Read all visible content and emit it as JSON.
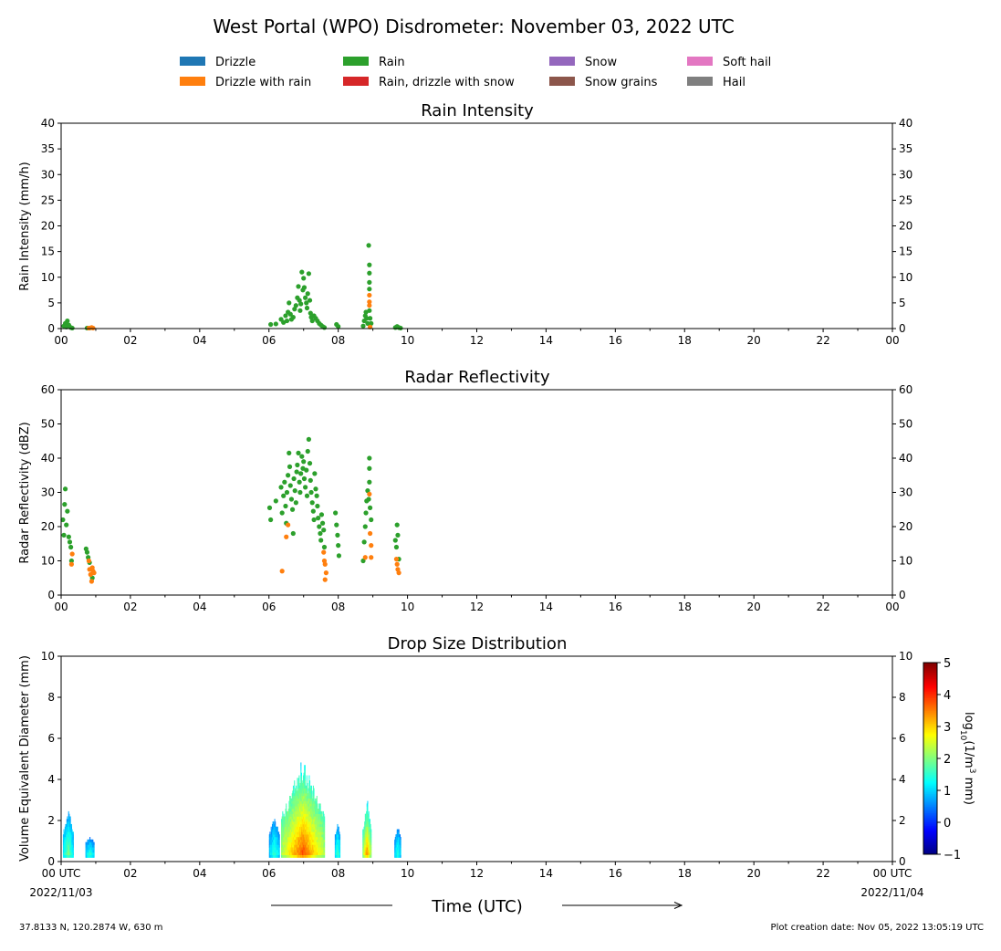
{
  "figure": {
    "title": "West Portal (WPO) Disdrometer: November 03, 2022 UTC",
    "xlabel": "Time (UTC)",
    "date_start": "2022/11/03",
    "date_end": "2022/11/04",
    "location": "37.8133 N, 120.2874 W, 630 m",
    "creation_date": "Plot creation date: Nov 05, 2022 13:05:19 UTC"
  },
  "legend": [
    {
      "label": "Drizzle",
      "color": "#1f77b4"
    },
    {
      "label": "Drizzle with rain",
      "color": "#ff7f0e"
    },
    {
      "label": "Rain",
      "color": "#2ca02c"
    },
    {
      "label": "Rain, drizzle with snow",
      "color": "#d62728"
    },
    {
      "label": "Snow",
      "color": "#9467bd"
    },
    {
      "label": "Snow grains",
      "color": "#8c564b"
    },
    {
      "label": "Soft hail",
      "color": "#e377c2"
    },
    {
      "label": "Hail",
      "color": "#7f7f7f"
    }
  ],
  "chart_data": [
    {
      "type": "scatter",
      "title": "Rain Intensity",
      "ylabel": "Rain Intensity (mm/h)",
      "xlim": [
        0,
        24
      ],
      "ylim": [
        0,
        40
      ],
      "x_tick_labels": [
        "00",
        "02",
        "04",
        "06",
        "08",
        "10",
        "12",
        "14",
        "16",
        "18",
        "20",
        "22",
        "00"
      ],
      "y_ticks": [
        0,
        5,
        10,
        15,
        20,
        25,
        30,
        35,
        40
      ],
      "series": [
        {
          "name": "Rain",
          "color": "#2ca02c",
          "points": [
            [
              0.08,
              0.5
            ],
            [
              0.12,
              1.0
            ],
            [
              0.15,
              0.3
            ],
            [
              0.18,
              1.5
            ],
            [
              0.22,
              0.7
            ],
            [
              0.28,
              0.2
            ],
            [
              0.32,
              0.1
            ],
            [
              0.75,
              0.1
            ],
            [
              0.82,
              0.1
            ],
            [
              6.05,
              0.8
            ],
            [
              6.2,
              0.9
            ],
            [
              6.35,
              1.8
            ],
            [
              6.42,
              1.2
            ],
            [
              6.48,
              2.5
            ],
            [
              6.52,
              1.5
            ],
            [
              6.55,
              3.2
            ],
            [
              6.58,
              5.0
            ],
            [
              6.62,
              2.8
            ],
            [
              6.65,
              1.8
            ],
            [
              6.7,
              2.2
            ],
            [
              6.74,
              3.8
            ],
            [
              6.78,
              4.5
            ],
            [
              6.82,
              6.0
            ],
            [
              6.85,
              8.2
            ],
            [
              6.88,
              5.5
            ],
            [
              6.9,
              3.5
            ],
            [
              6.92,
              4.8
            ],
            [
              6.95,
              11.0
            ],
            [
              6.98,
              7.5
            ],
            [
              7.0,
              9.8
            ],
            [
              7.02,
              8.0
            ],
            [
              7.05,
              6.0
            ],
            [
              7.08,
              5.0
            ],
            [
              7.1,
              4.0
            ],
            [
              7.12,
              6.8
            ],
            [
              7.15,
              10.7
            ],
            [
              7.18,
              5.5
            ],
            [
              7.2,
              3.0
            ],
            [
              7.22,
              2.2
            ],
            [
              7.25,
              1.5
            ],
            [
              7.3,
              2.5
            ],
            [
              7.35,
              2.0
            ],
            [
              7.4,
              1.5
            ],
            [
              7.45,
              1.0
            ],
            [
              7.5,
              0.7
            ],
            [
              7.55,
              0.4
            ],
            [
              7.6,
              0.2
            ],
            [
              7.95,
              0.8
            ],
            [
              8.0,
              0.4
            ],
            [
              8.72,
              0.5
            ],
            [
              8.75,
              1.5
            ],
            [
              8.78,
              2.5
            ],
            [
              8.8,
              3.2
            ],
            [
              8.82,
              2.0
            ],
            [
              8.85,
              1.0
            ],
            [
              8.88,
              16.2
            ],
            [
              8.9,
              12.4
            ],
            [
              8.9,
              10.8
            ],
            [
              8.9,
              9.0
            ],
            [
              8.9,
              7.7
            ],
            [
              8.9,
              3.5
            ],
            [
              8.92,
              2.0
            ],
            [
              8.95,
              1.0
            ],
            [
              9.65,
              0.2
            ],
            [
              9.7,
              0.4
            ],
            [
              9.75,
              0.2
            ],
            [
              9.8,
              0.1
            ]
          ]
        },
        {
          "name": "Drizzle with rain",
          "color": "#ff7f0e",
          "points": [
            [
              0.8,
              0.1
            ],
            [
              0.88,
              0.2
            ],
            [
              0.92,
              0.1
            ],
            [
              8.9,
              6.5
            ],
            [
              8.9,
              5.2
            ],
            [
              8.9,
              4.5
            ],
            [
              8.92,
              0.3
            ]
          ]
        }
      ]
    },
    {
      "type": "scatter",
      "title": "Radar Reflectivity",
      "ylabel": "Radar Reflectivity (dBZ)",
      "xlim": [
        0,
        24
      ],
      "ylim": [
        0,
        60
      ],
      "x_tick_labels": [
        "00",
        "02",
        "04",
        "06",
        "08",
        "10",
        "12",
        "14",
        "16",
        "18",
        "20",
        "22",
        "00"
      ],
      "y_ticks": [
        0,
        10,
        20,
        30,
        40,
        50,
        60
      ],
      "series": [
        {
          "name": "Rain",
          "color": "#2ca02c",
          "points": [
            [
              0.05,
              22.0
            ],
            [
              0.08,
              17.5
            ],
            [
              0.1,
              26.5
            ],
            [
              0.12,
              31.0
            ],
            [
              0.15,
              20.5
            ],
            [
              0.18,
              24.5
            ],
            [
              0.22,
              17.0
            ],
            [
              0.25,
              15.5
            ],
            [
              0.28,
              14.0
            ],
            [
              0.3,
              10.0
            ],
            [
              0.72,
              13.5
            ],
            [
              0.75,
              12.5
            ],
            [
              0.78,
              11.0
            ],
            [
              0.82,
              9.5
            ],
            [
              0.9,
              5.0
            ],
            [
              6.02,
              25.5
            ],
            [
              6.05,
              22.0
            ],
            [
              6.2,
              27.5
            ],
            [
              6.35,
              31.5
            ],
            [
              6.38,
              24.0
            ],
            [
              6.42,
              29.0
            ],
            [
              6.45,
              33.0
            ],
            [
              6.48,
              26.0
            ],
            [
              6.5,
              21.0
            ],
            [
              6.52,
              30.0
            ],
            [
              6.55,
              35.0
            ],
            [
              6.58,
              41.5
            ],
            [
              6.6,
              37.5
            ],
            [
              6.62,
              32.0
            ],
            [
              6.65,
              28.0
            ],
            [
              6.68,
              25.0
            ],
            [
              6.7,
              18.0
            ],
            [
              6.72,
              34.0
            ],
            [
              6.75,
              30.5
            ],
            [
              6.78,
              27.0
            ],
            [
              6.8,
              36.0
            ],
            [
              6.82,
              38.0
            ],
            [
              6.85,
              41.5
            ],
            [
              6.88,
              33.0
            ],
            [
              6.9,
              30.0
            ],
            [
              6.92,
              35.5
            ],
            [
              6.95,
              40.5
            ],
            [
              6.98,
              37.0
            ],
            [
              7.0,
              39.0
            ],
            [
              7.02,
              34.0
            ],
            [
              7.05,
              31.5
            ],
            [
              7.08,
              36.5
            ],
            [
              7.1,
              29.0
            ],
            [
              7.12,
              42.0
            ],
            [
              7.15,
              45.5
            ],
            [
              7.18,
              38.5
            ],
            [
              7.2,
              33.5
            ],
            [
              7.22,
              30.0
            ],
            [
              7.25,
              27.0
            ],
            [
              7.28,
              24.5
            ],
            [
              7.3,
              22.0
            ],
            [
              7.32,
              35.5
            ],
            [
              7.35,
              31.0
            ],
            [
              7.38,
              29.0
            ],
            [
              7.4,
              26.0
            ],
            [
              7.42,
              22.5
            ],
            [
              7.45,
              20.0
            ],
            [
              7.48,
              18.0
            ],
            [
              7.5,
              16.0
            ],
            [
              7.52,
              23.5
            ],
            [
              7.55,
              21.0
            ],
            [
              7.58,
              19.0
            ],
            [
              7.6,
              14.0
            ],
            [
              7.92,
              24.0
            ],
            [
              7.95,
              20.5
            ],
            [
              7.98,
              17.5
            ],
            [
              8.0,
              14.5
            ],
            [
              8.02,
              11.5
            ],
            [
              8.72,
              10.0
            ],
            [
              8.75,
              15.5
            ],
            [
              8.78,
              20.0
            ],
            [
              8.8,
              24.0
            ],
            [
              8.82,
              27.5
            ],
            [
              8.85,
              30.5
            ],
            [
              8.88,
              28.0
            ],
            [
              8.9,
              40.0
            ],
            [
              8.9,
              37.0
            ],
            [
              8.9,
              33.0
            ],
            [
              8.92,
              25.5
            ],
            [
              8.95,
              22.0
            ],
            [
              9.65,
              16.0
            ],
            [
              9.68,
              14.0
            ],
            [
              9.7,
              20.5
            ],
            [
              9.72,
              17.5
            ],
            [
              9.75,
              10.5
            ]
          ]
        },
        {
          "name": "Drizzle with rain",
          "color": "#ff7f0e",
          "points": [
            [
              0.3,
              9.0
            ],
            [
              0.32,
              12.0
            ],
            [
              0.8,
              10.0
            ],
            [
              0.82,
              7.5
            ],
            [
              0.85,
              6.0
            ],
            [
              0.88,
              4.0
            ],
            [
              0.9,
              8.0
            ],
            [
              0.92,
              7.0
            ],
            [
              0.95,
              6.5
            ],
            [
              6.38,
              7.0
            ],
            [
              6.5,
              17.0
            ],
            [
              6.55,
              20.5
            ],
            [
              7.58,
              12.5
            ],
            [
              7.6,
              10.0
            ],
            [
              7.62,
              9.0
            ],
            [
              7.65,
              6.5
            ],
            [
              7.62,
              4.5
            ],
            [
              8.78,
              11.0
            ],
            [
              8.9,
              29.5
            ],
            [
              8.92,
              18.0
            ],
            [
              8.95,
              14.5
            ],
            [
              8.95,
              11.0
            ],
            [
              9.68,
              10.5
            ],
            [
              9.7,
              9.0
            ],
            [
              9.72,
              7.5
            ],
            [
              9.75,
              6.5
            ]
          ]
        }
      ]
    },
    {
      "type": "heatmap",
      "title": "Drop Size Distribution",
      "ylabel": "Volume Equivalent Diameter (mm)",
      "xlim": [
        0,
        24
      ],
      "ylim": [
        0,
        10
      ],
      "x_tick_labels": [
        "00 UTC",
        "02",
        "04",
        "06",
        "08",
        "10",
        "12",
        "14",
        "16",
        "18",
        "20",
        "22",
        "00 UTC"
      ],
      "y_ticks": [
        0,
        2,
        4,
        6,
        8,
        10
      ],
      "colorbar": {
        "label": "log10(1/m3 mm)",
        "label_base": "log",
        "label_sub": "10",
        "label_unit": "(1/m",
        "label_sup": "3",
        "label_tail": " mm)",
        "range": [
          -1,
          5
        ],
        "ticks": [
          -1,
          0,
          1,
          2,
          3,
          4,
          5
        ],
        "tick_labels": [
          "−1",
          "0",
          "1",
          "2",
          "3",
          "4",
          "5"
        ]
      },
      "periods": [
        {
          "start": 0.05,
          "end": 0.35,
          "max_d": 2.5,
          "peak": 2.2
        },
        {
          "start": 0.7,
          "end": 0.95,
          "max_d": 1.1,
          "peak": 2.0
        },
        {
          "start": 6.0,
          "end": 6.3,
          "max_d": 2.2,
          "peak": 1.8
        },
        {
          "start": 6.35,
          "end": 7.6,
          "max_d": 5.0,
          "peak": 4.0
        },
        {
          "start": 7.9,
          "end": 8.05,
          "max_d": 2.0,
          "peak": 2.0
        },
        {
          "start": 8.7,
          "end": 8.95,
          "max_d": 3.0,
          "peak": 3.8
        },
        {
          "start": 9.62,
          "end": 9.8,
          "max_d": 1.7,
          "peak": 1.8
        }
      ]
    }
  ]
}
